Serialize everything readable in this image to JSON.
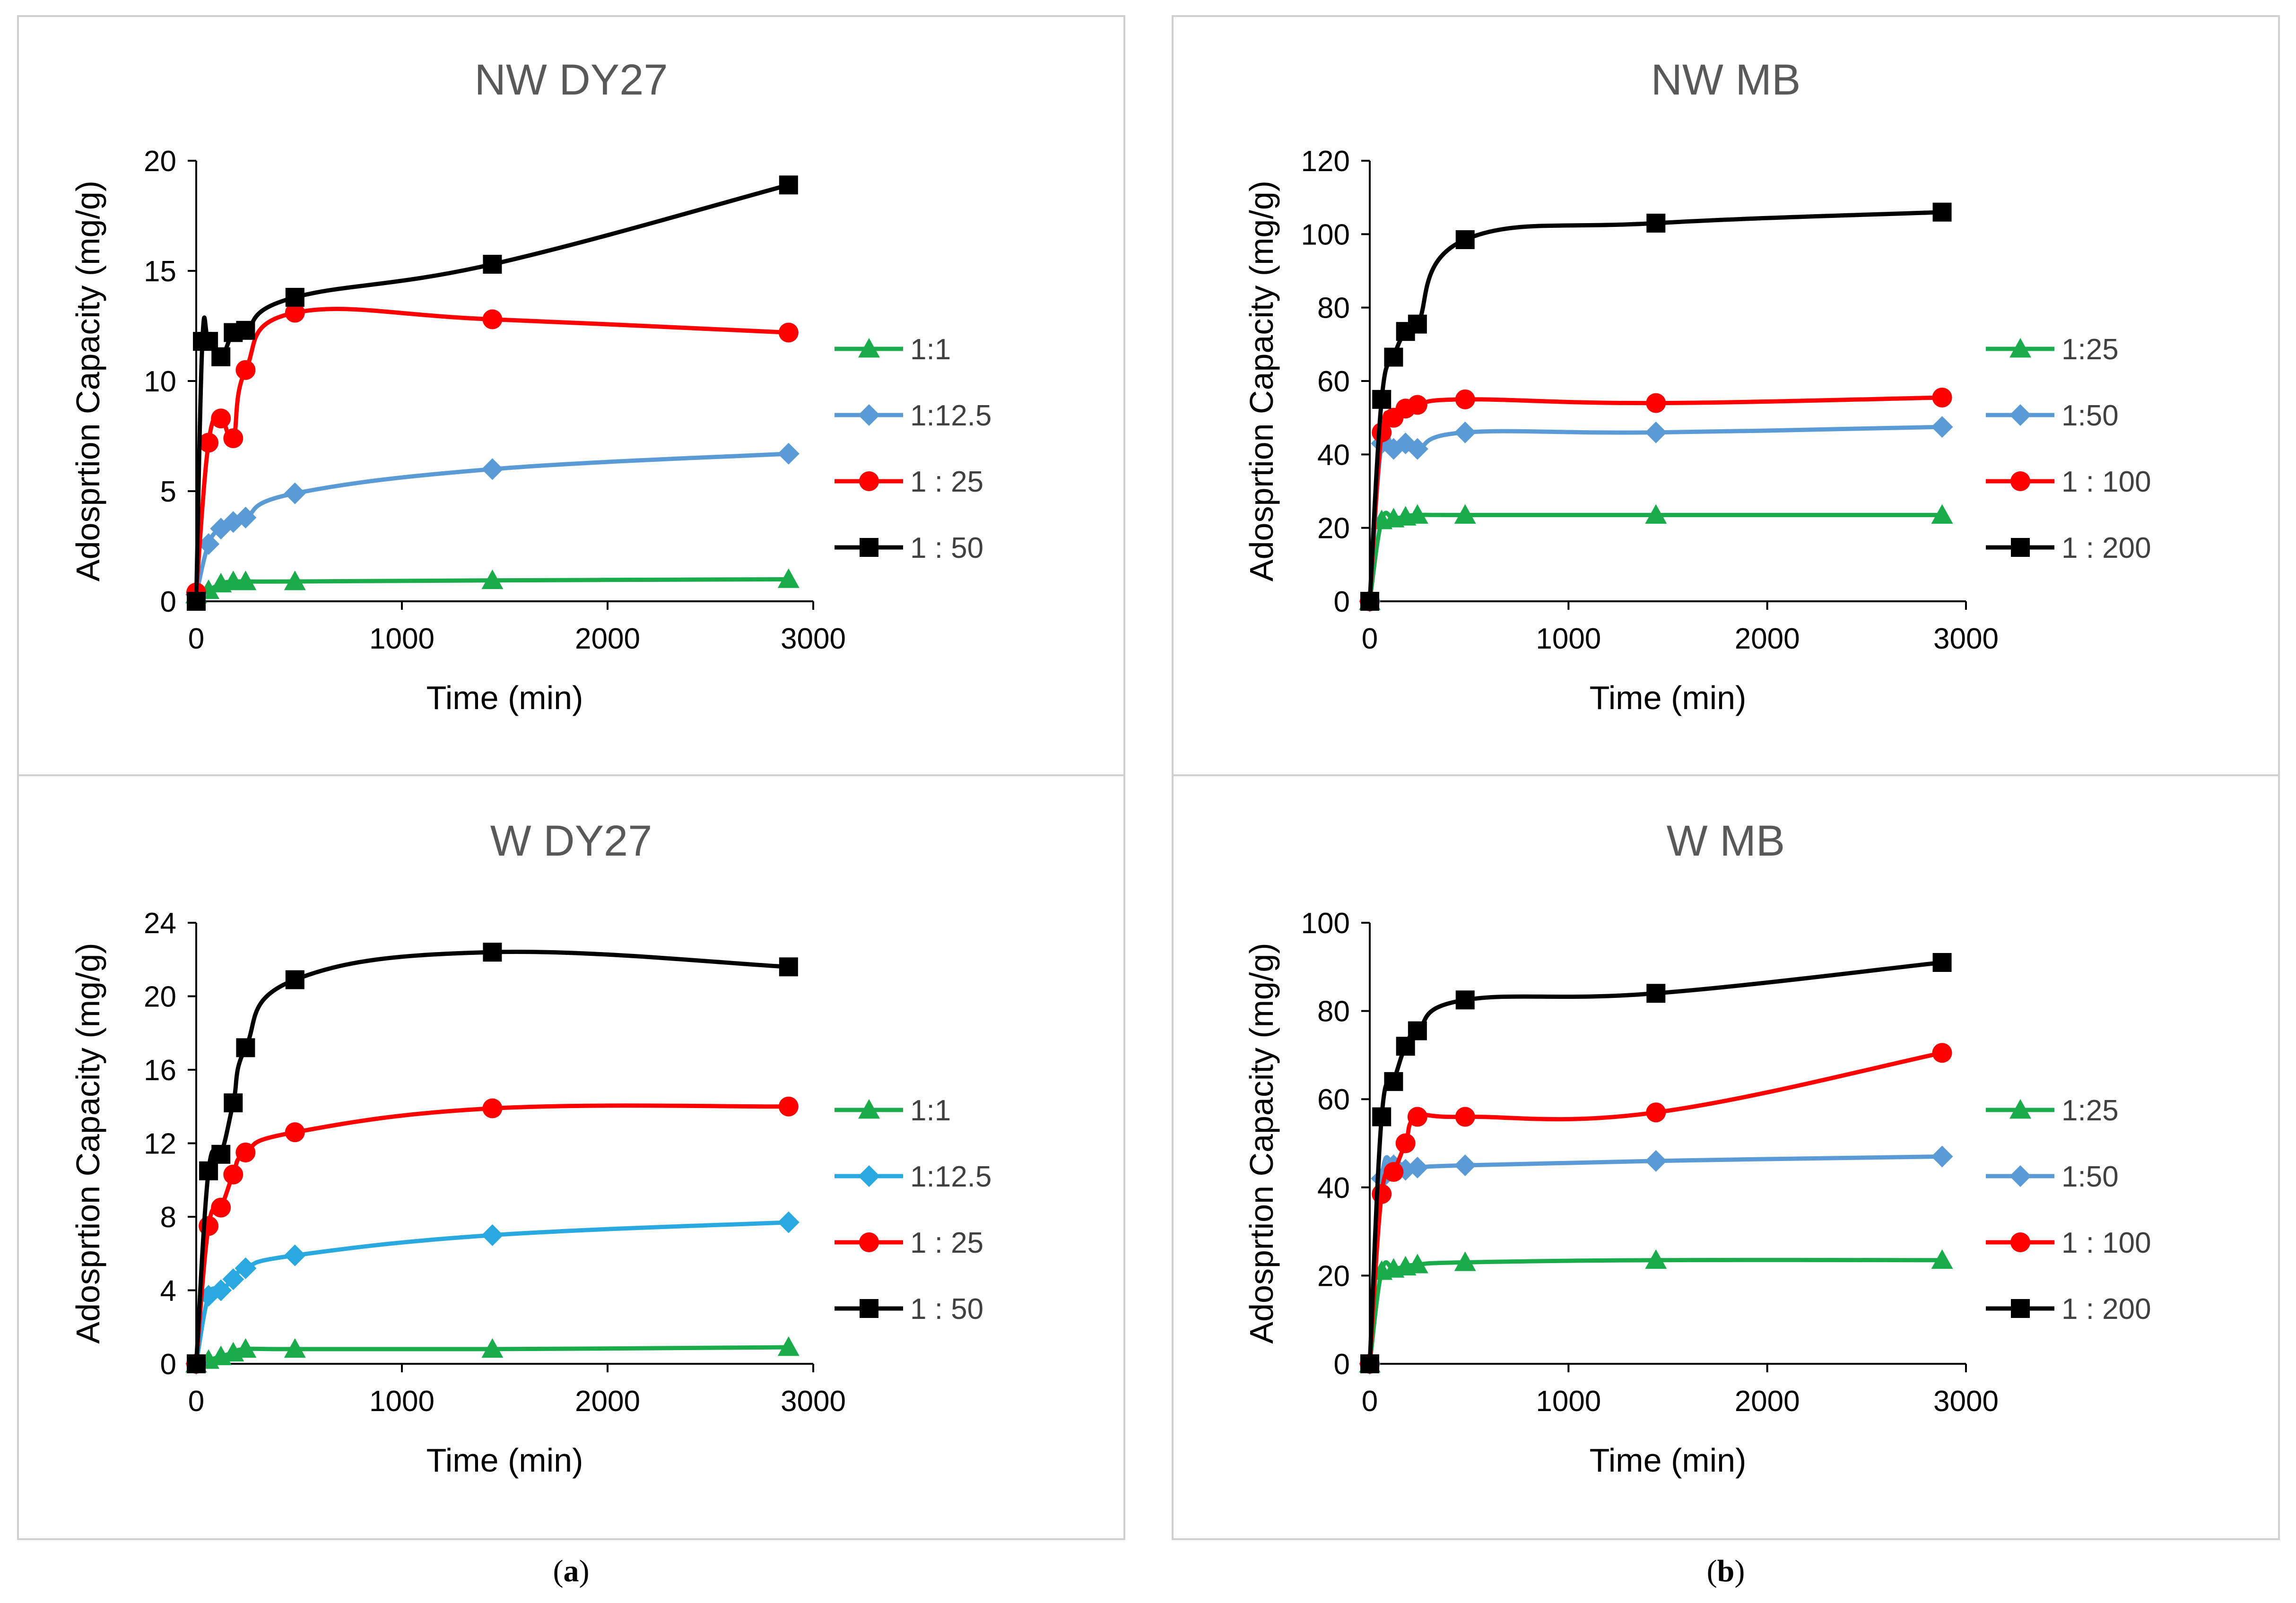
{
  "figure": {
    "subcaptions": [
      {
        "open": "(",
        "letter": "a",
        "close": ")"
      },
      {
        "open": "(",
        "letter": "b",
        "close": ")"
      }
    ]
  },
  "chart_data": [
    {
      "type": "line",
      "title": "NW DY27",
      "xlabel": "Time (min)",
      "ylabel": "Adosprtion Capacity  (mg/g)",
      "xlim": [
        0,
        3000
      ],
      "ylim": [
        0,
        20
      ],
      "xticks": [
        0,
        1000,
        2000,
        3000
      ],
      "yticks": [
        0,
        5,
        10,
        15,
        20
      ],
      "series": [
        {
          "name": "1:1",
          "color": "#1aab4b",
          "marker": "triangle",
          "x": [
            0,
            60,
            120,
            180,
            240,
            480,
            1440,
            2880
          ],
          "y": [
            0.3,
            0.5,
            0.8,
            0.9,
            0.9,
            0.9,
            0.95,
            1.0
          ]
        },
        {
          "name": "1:12.5",
          "color": "#5b9bd5",
          "marker": "diamond",
          "x": [
            0,
            60,
            120,
            180,
            240,
            480,
            1440,
            2880
          ],
          "y": [
            0.3,
            2.6,
            3.3,
            3.6,
            3.8,
            4.9,
            6.0,
            6.7
          ]
        },
        {
          "name": "1 : 25",
          "color": "#ff0000",
          "marker": "circle",
          "x": [
            0,
            60,
            120,
            180,
            240,
            480,
            1440,
            2880
          ],
          "y": [
            0.4,
            7.2,
            8.3,
            7.4,
            10.5,
            13.1,
            12.8,
            12.2
          ]
        },
        {
          "name": "1 : 50",
          "color": "#000000",
          "marker": "square",
          "x": [
            0,
            30,
            60,
            120,
            180,
            240,
            480,
            1440,
            2880
          ],
          "y": [
            0.0,
            11.8,
            11.8,
            11.1,
            12.2,
            12.3,
            13.8,
            15.3,
            18.9
          ]
        }
      ]
    },
    {
      "type": "line",
      "title": "NW MB",
      "xlabel": "Time (min)",
      "ylabel": "Adosprtion Capacity  (mg/g)",
      "xlim": [
        0,
        3000
      ],
      "ylim": [
        0,
        120
      ],
      "xticks": [
        0,
        1000,
        2000,
        3000
      ],
      "yticks": [
        0,
        20,
        40,
        60,
        80,
        100,
        120
      ],
      "series": [
        {
          "name": "1:25",
          "color": "#1aab4b",
          "marker": "triangle",
          "x": [
            0,
            60,
            120,
            180,
            240,
            480,
            1440,
            2880
          ],
          "y": [
            0,
            22,
            22.5,
            23,
            23.5,
            23.5,
            23.5,
            23.5
          ]
        },
        {
          "name": "1:50",
          "color": "#5b9bd5",
          "marker": "diamond",
          "x": [
            0,
            60,
            120,
            180,
            240,
            480,
            1440,
            2880
          ],
          "y": [
            0,
            43,
            41.5,
            43,
            41.5,
            46,
            46,
            47.5
          ]
        },
        {
          "name": "1 : 100",
          "color": "#ff0000",
          "marker": "circle",
          "x": [
            0,
            60,
            120,
            180,
            240,
            480,
            1440,
            2880
          ],
          "y": [
            0,
            46,
            50,
            52.5,
            53.5,
            55,
            54,
            55.5
          ]
        },
        {
          "name": "1 : 200",
          "color": "#000000",
          "marker": "square",
          "x": [
            0,
            60,
            120,
            180,
            240,
            480,
            1440,
            2880
          ],
          "y": [
            0,
            55,
            66.5,
            73.5,
            75.5,
            98.5,
            103,
            106
          ]
        }
      ]
    },
    {
      "type": "line",
      "title": "W DY27",
      "xlabel": "Time (min)",
      "ylabel": "Adosprtion Capacity  (mg/g)",
      "xlim": [
        0,
        3000
      ],
      "ylim": [
        0,
        24
      ],
      "xticks": [
        0,
        1000,
        2000,
        3000
      ],
      "yticks": [
        0,
        4,
        8,
        12,
        16,
        20,
        24
      ],
      "series": [
        {
          "name": "1:1",
          "color": "#1aab4b",
          "marker": "triangle",
          "x": [
            0,
            60,
            120,
            180,
            240,
            480,
            1440,
            2880
          ],
          "y": [
            0,
            0.2,
            0.4,
            0.6,
            0.8,
            0.8,
            0.8,
            0.9
          ]
        },
        {
          "name": "1:12.5",
          "color": "#2aa8e0",
          "marker": "diamond",
          "x": [
            0,
            60,
            120,
            180,
            240,
            480,
            1440,
            2880
          ],
          "y": [
            0,
            3.7,
            4.0,
            4.6,
            5.2,
            5.9,
            7.0,
            7.7
          ]
        },
        {
          "name": "1 : 25",
          "color": "#ff0000",
          "marker": "circle",
          "x": [
            0,
            60,
            120,
            180,
            240,
            480,
            1440,
            2880
          ],
          "y": [
            0,
            7.5,
            8.5,
            10.3,
            11.5,
            12.6,
            13.9,
            14.0
          ]
        },
        {
          "name": "1 : 50",
          "color": "#000000",
          "marker": "square",
          "x": [
            0,
            60,
            120,
            180,
            240,
            480,
            1440,
            2880
          ],
          "y": [
            0,
            10.5,
            11.4,
            14.2,
            17.2,
            20.9,
            22.4,
            21.6
          ]
        }
      ]
    },
    {
      "type": "line",
      "title": "W MB",
      "xlabel": "Time (min)",
      "ylabel": "Adosprtion Capacity  (mg/g)",
      "xlim": [
        0,
        3000
      ],
      "ylim": [
        0,
        100
      ],
      "xticks": [
        0,
        1000,
        2000,
        3000
      ],
      "yticks": [
        0,
        20,
        40,
        60,
        80,
        100
      ],
      "series": [
        {
          "name": "1:25",
          "color": "#1aab4b",
          "marker": "triangle",
          "x": [
            0,
            60,
            120,
            180,
            240,
            480,
            1440,
            2880
          ],
          "y": [
            0,
            21,
            21.5,
            22,
            22.5,
            23,
            23.5,
            23.5
          ]
        },
        {
          "name": "1:50",
          "color": "#5b9bd5",
          "marker": "diamond",
          "x": [
            0,
            60,
            120,
            180,
            240,
            480,
            1440,
            2880
          ],
          "y": [
            0,
            42,
            45,
            44,
            44.5,
            45,
            46,
            47
          ]
        },
        {
          "name": "1 : 100",
          "color": "#ff0000",
          "marker": "circle",
          "x": [
            0,
            60,
            120,
            180,
            240,
            480,
            1440,
            2880
          ],
          "y": [
            0,
            38.5,
            43.5,
            50,
            56,
            56,
            57,
            70.5
          ]
        },
        {
          "name": "1 : 200",
          "color": "#000000",
          "marker": "square",
          "x": [
            0,
            60,
            120,
            180,
            240,
            480,
            1440,
            2880
          ],
          "y": [
            0,
            56,
            64,
            72,
            75.5,
            82.5,
            84,
            91
          ]
        }
      ]
    }
  ]
}
